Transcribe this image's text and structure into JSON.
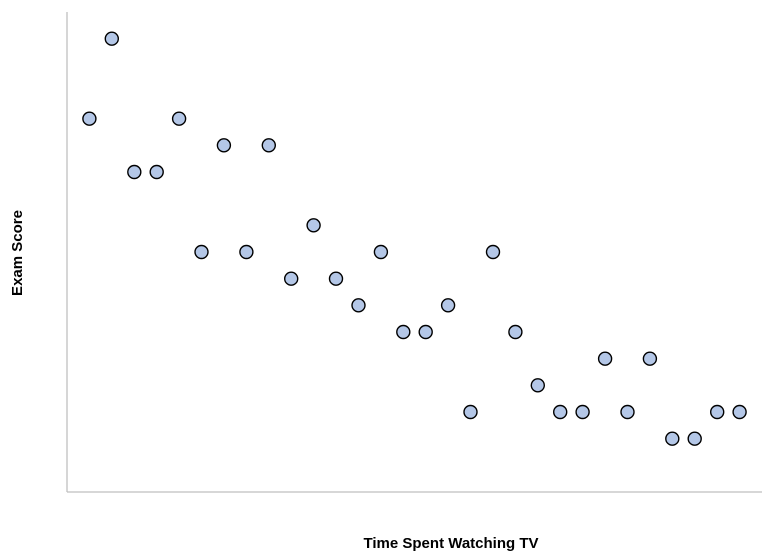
{
  "chart_data": {
    "type": "scatter",
    "title": "",
    "xlabel": "Time Spent Watching TV",
    "ylabel": "Exam Score",
    "xlim": [
      0,
      31
    ],
    "ylim": [
      0,
      18
    ],
    "grid": false,
    "legend": "none",
    "colors": {
      "marker_fill": "#b4c7e7",
      "marker_stroke": "#000000",
      "axis": "#bfbfbf"
    },
    "series": [
      {
        "x": [
          1,
          2,
          3,
          4,
          5,
          6,
          7,
          8,
          9,
          10,
          11,
          12,
          13,
          14,
          15,
          16,
          17,
          18,
          19,
          20,
          21,
          22,
          23,
          24,
          25,
          26,
          27,
          28,
          29,
          30
        ],
        "y": [
          14,
          17,
          12,
          12,
          14,
          9,
          13,
          9,
          13,
          8,
          10,
          8,
          7,
          9,
          6,
          6,
          7,
          3,
          9,
          6,
          4,
          3,
          3,
          5,
          3,
          5,
          2,
          2,
          3,
          3
        ]
      }
    ]
  }
}
